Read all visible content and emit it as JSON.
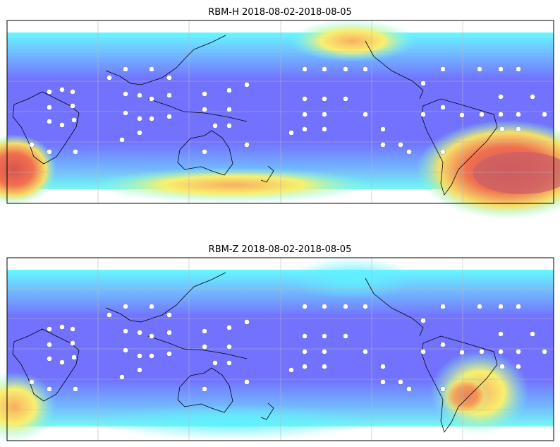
{
  "panels": [
    {
      "title": "RBM-H 2018-08-02-2018-08-05"
    },
    {
      "title": "RBM-Z 2018-08-02-2018-08-05"
    }
  ]
}
